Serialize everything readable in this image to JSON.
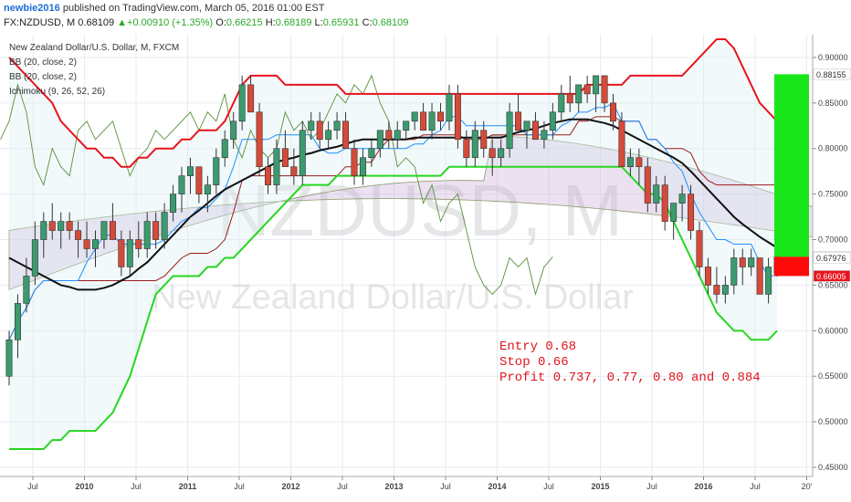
{
  "header": {
    "author": "newbie2016",
    "published_text": "published on TradingView.com, March 05, 2016 01:00 EST",
    "symbol": "FX:NZDUSD, M",
    "last": "0.68109",
    "change_arrow": "▲",
    "change": "+0.00910 (+1.35%)",
    "o_label": "O:",
    "o_value": "0.66215",
    "h_label": "H:",
    "h_value": "0.68189",
    "l_label": "L:",
    "l_value": "0.65931",
    "c_label": "C:",
    "c_value": "0.68109"
  },
  "legend": [
    "New Zealand Dollar/U.S. Dollar, M, FXCM",
    "BB (20, close, 2)",
    "BB (20, close, 2)",
    "Ichimoku (9, 26, 52, 26)"
  ],
  "watermark": {
    "symbol": "NZDUSD, M",
    "name": "New Zealand Dollar/U.S. Dollar"
  },
  "annotation": [
    "Entry 0.68",
    "Stop 0.66",
    "Profit 0.737, 0.77, 0.80 and 0.884"
  ],
  "price_tags": [
    {
      "text": "0.88155",
      "value": 0.88155,
      "bg": "#ffffff",
      "fg": "#333333"
    },
    {
      "text": "0.68109",
      "value": 0.68109,
      "bg": "#ffffff",
      "fg": "#333333"
    },
    {
      "text": "0.67976",
      "value": 0.67976,
      "bg": "#ffffff",
      "fg": "#333333"
    },
    {
      "text": "0.66005",
      "value": 0.66005,
      "bg": "#e8141c",
      "fg": "#ffffff"
    }
  ],
  "colors": {
    "bull": "#3c9b6e",
    "bear": "#d64a3a",
    "bb_upper": "#e8141c",
    "bb_lower": "#27d620",
    "sma": "#111111",
    "tenkan": "#1e90ff",
    "kijun": "#9b1b1b",
    "chikou": "#5a8f3a",
    "cloud": "#c8a8d8",
    "profit": "#19e61a",
    "loss": "#ff0a0a"
  },
  "chart_data": {
    "type": "candlestick",
    "title": "New Zealand Dollar/U.S. Dollar, M, FXCM",
    "ylim": [
      0.44,
      0.925
    ],
    "y_ticks": [
      "0.90000",
      "0.85000",
      "0.80000",
      "0.75000",
      "0.70000",
      "0.65000",
      "0.60000",
      "0.55000",
      "0.50000",
      "0.45000"
    ],
    "x_labels": [
      "Jul",
      "2010",
      "Jul",
      "2011",
      "Jul",
      "2012",
      "Jul",
      "2013",
      "Jul",
      "2014",
      "Jul",
      "2015",
      "Jul",
      "2016",
      "Jul",
      "20'"
    ],
    "candles": [
      [
        0.55,
        0.6,
        0.54,
        0.59
      ],
      [
        0.59,
        0.64,
        0.57,
        0.63
      ],
      [
        0.63,
        0.68,
        0.62,
        0.66
      ],
      [
        0.66,
        0.72,
        0.65,
        0.7
      ],
      [
        0.7,
        0.73,
        0.68,
        0.72
      ],
      [
        0.72,
        0.74,
        0.7,
        0.71
      ],
      [
        0.71,
        0.73,
        0.69,
        0.72
      ],
      [
        0.72,
        0.73,
        0.7,
        0.71
      ],
      [
        0.71,
        0.72,
        0.68,
        0.7
      ],
      [
        0.7,
        0.72,
        0.68,
        0.69
      ],
      [
        0.69,
        0.71,
        0.67,
        0.7
      ],
      [
        0.7,
        0.72,
        0.69,
        0.72
      ],
      [
        0.72,
        0.74,
        0.7,
        0.7
      ],
      [
        0.7,
        0.71,
        0.66,
        0.67
      ],
      [
        0.67,
        0.71,
        0.66,
        0.7
      ],
      [
        0.7,
        0.72,
        0.68,
        0.69
      ],
      [
        0.69,
        0.73,
        0.68,
        0.72
      ],
      [
        0.72,
        0.73,
        0.69,
        0.7
      ],
      [
        0.7,
        0.74,
        0.69,
        0.73
      ],
      [
        0.73,
        0.76,
        0.72,
        0.75
      ],
      [
        0.75,
        0.78,
        0.73,
        0.77
      ],
      [
        0.77,
        0.79,
        0.75,
        0.78
      ],
      [
        0.78,
        0.78,
        0.74,
        0.75
      ],
      [
        0.75,
        0.77,
        0.73,
        0.76
      ],
      [
        0.76,
        0.8,
        0.75,
        0.79
      ],
      [
        0.79,
        0.82,
        0.78,
        0.81
      ],
      [
        0.81,
        0.84,
        0.8,
        0.83
      ],
      [
        0.83,
        0.88,
        0.82,
        0.87
      ],
      [
        0.87,
        0.88,
        0.84,
        0.84
      ],
      [
        0.84,
        0.85,
        0.77,
        0.78
      ],
      [
        0.78,
        0.79,
        0.75,
        0.76
      ],
      [
        0.76,
        0.81,
        0.75,
        0.8
      ],
      [
        0.8,
        0.82,
        0.78,
        0.78
      ],
      [
        0.78,
        0.8,
        0.76,
        0.77
      ],
      [
        0.77,
        0.83,
        0.76,
        0.82
      ],
      [
        0.82,
        0.84,
        0.81,
        0.83
      ],
      [
        0.83,
        0.84,
        0.8,
        0.81
      ],
      [
        0.81,
        0.83,
        0.8,
        0.82
      ],
      [
        0.82,
        0.84,
        0.81,
        0.83
      ],
      [
        0.83,
        0.84,
        0.8,
        0.8
      ],
      [
        0.8,
        0.81,
        0.76,
        0.77
      ],
      [
        0.77,
        0.8,
        0.76,
        0.79
      ],
      [
        0.79,
        0.81,
        0.78,
        0.8
      ],
      [
        0.8,
        0.82,
        0.79,
        0.82
      ],
      [
        0.82,
        0.83,
        0.8,
        0.81
      ],
      [
        0.81,
        0.83,
        0.8,
        0.82
      ],
      [
        0.82,
        0.83,
        0.81,
        0.83
      ],
      [
        0.83,
        0.84,
        0.82,
        0.84
      ],
      [
        0.84,
        0.85,
        0.82,
        0.82
      ],
      [
        0.82,
        0.85,
        0.81,
        0.84
      ],
      [
        0.84,
        0.85,
        0.82,
        0.83
      ],
      [
        0.83,
        0.87,
        0.82,
        0.86
      ],
      [
        0.86,
        0.87,
        0.8,
        0.81
      ],
      [
        0.81,
        0.82,
        0.78,
        0.79
      ],
      [
        0.79,
        0.83,
        0.78,
        0.82
      ],
      [
        0.82,
        0.83,
        0.79,
        0.8
      ],
      [
        0.8,
        0.81,
        0.77,
        0.79
      ],
      [
        0.79,
        0.81,
        0.78,
        0.8
      ],
      [
        0.8,
        0.85,
        0.79,
        0.84
      ],
      [
        0.84,
        0.86,
        0.82,
        0.82
      ],
      [
        0.82,
        0.83,
        0.8,
        0.83
      ],
      [
        0.83,
        0.84,
        0.81,
        0.81
      ],
      [
        0.81,
        0.83,
        0.8,
        0.82
      ],
      [
        0.82,
        0.85,
        0.81,
        0.84
      ],
      [
        0.84,
        0.87,
        0.83,
        0.86
      ],
      [
        0.86,
        0.88,
        0.84,
        0.85
      ],
      [
        0.85,
        0.87,
        0.84,
        0.87
      ],
      [
        0.87,
        0.88,
        0.85,
        0.86
      ],
      [
        0.86,
        0.88,
        0.84,
        0.88
      ],
      [
        0.88,
        0.88,
        0.84,
        0.85
      ],
      [
        0.85,
        0.86,
        0.82,
        0.83
      ],
      [
        0.83,
        0.84,
        0.78,
        0.78
      ],
      [
        0.78,
        0.8,
        0.77,
        0.79
      ],
      [
        0.79,
        0.8,
        0.76,
        0.78
      ],
      [
        0.78,
        0.79,
        0.73,
        0.74
      ],
      [
        0.74,
        0.77,
        0.73,
        0.76
      ],
      [
        0.76,
        0.77,
        0.71,
        0.72
      ],
      [
        0.72,
        0.74,
        0.7,
        0.74
      ],
      [
        0.74,
        0.76,
        0.72,
        0.75
      ],
      [
        0.75,
        0.76,
        0.7,
        0.71
      ],
      [
        0.71,
        0.72,
        0.66,
        0.67
      ],
      [
        0.67,
        0.68,
        0.64,
        0.65
      ],
      [
        0.65,
        0.67,
        0.63,
        0.64
      ],
      [
        0.64,
        0.66,
        0.63,
        0.65
      ],
      [
        0.65,
        0.69,
        0.64,
        0.68
      ],
      [
        0.68,
        0.69,
        0.65,
        0.67
      ],
      [
        0.67,
        0.69,
        0.66,
        0.68
      ],
      [
        0.68,
        0.68,
        0.64,
        0.64
      ],
      [
        0.64,
        0.68,
        0.63,
        0.67
      ],
      [
        0.66215,
        0.68189,
        0.65931,
        0.68109
      ]
    ],
    "bb_upper": [
      0.9,
      0.89,
      0.88,
      0.87,
      0.86,
      0.85,
      0.83,
      0.82,
      0.81,
      0.8,
      0.8,
      0.79,
      0.79,
      0.78,
      0.78,
      0.79,
      0.79,
      0.8,
      0.8,
      0.8,
      0.81,
      0.81,
      0.82,
      0.82,
      0.82,
      0.83,
      0.85,
      0.87,
      0.88,
      0.88,
      0.88,
      0.88,
      0.87,
      0.87,
      0.87,
      0.87,
      0.87,
      0.87,
      0.87,
      0.86,
      0.86,
      0.86,
      0.86,
      0.86,
      0.86,
      0.86,
      0.86,
      0.86,
      0.86,
      0.86,
      0.86,
      0.86,
      0.86,
      0.86,
      0.86,
      0.86,
      0.86,
      0.86,
      0.86,
      0.86,
      0.86,
      0.86,
      0.86,
      0.86,
      0.86,
      0.86,
      0.86,
      0.87,
      0.87,
      0.87,
      0.87,
      0.87,
      0.88,
      0.88,
      0.88,
      0.88,
      0.88,
      0.88,
      0.88,
      0.89,
      0.9,
      0.91,
      0.92,
      0.92,
      0.91,
      0.89,
      0.87,
      0.85,
      0.84,
      0.83
    ],
    "bb_lower": [
      0.47,
      0.47,
      0.47,
      0.47,
      0.47,
      0.48,
      0.48,
      0.49,
      0.49,
      0.49,
      0.49,
      0.5,
      0.51,
      0.53,
      0.55,
      0.58,
      0.61,
      0.64,
      0.65,
      0.66,
      0.66,
      0.66,
      0.66,
      0.67,
      0.67,
      0.68,
      0.68,
      0.69,
      0.7,
      0.71,
      0.72,
      0.73,
      0.74,
      0.75,
      0.76,
      0.76,
      0.76,
      0.76,
      0.77,
      0.77,
      0.77,
      0.77,
      0.77,
      0.77,
      0.77,
      0.77,
      0.77,
      0.77,
      0.77,
      0.77,
      0.77,
      0.78,
      0.78,
      0.78,
      0.78,
      0.78,
      0.78,
      0.78,
      0.78,
      0.78,
      0.78,
      0.78,
      0.78,
      0.78,
      0.78,
      0.78,
      0.78,
      0.78,
      0.78,
      0.78,
      0.78,
      0.78,
      0.77,
      0.76,
      0.75,
      0.75,
      0.74,
      0.72,
      0.7,
      0.68,
      0.66,
      0.64,
      0.62,
      0.61,
      0.6,
      0.6,
      0.59,
      0.59,
      0.59,
      0.6
    ],
    "sma": [
      0.68,
      0.675,
      0.67,
      0.665,
      0.66,
      0.655,
      0.65,
      0.648,
      0.645,
      0.645,
      0.645,
      0.647,
      0.65,
      0.655,
      0.66,
      0.668,
      0.675,
      0.685,
      0.695,
      0.705,
      0.715,
      0.725,
      0.732,
      0.74,
      0.748,
      0.755,
      0.76,
      0.765,
      0.77,
      0.775,
      0.78,
      0.785,
      0.788,
      0.79,
      0.793,
      0.795,
      0.798,
      0.8,
      0.802,
      0.805,
      0.808,
      0.81,
      0.81,
      0.81,
      0.81,
      0.81,
      0.81,
      0.812,
      0.812,
      0.812,
      0.812,
      0.812,
      0.812,
      0.812,
      0.812,
      0.812,
      0.812,
      0.812,
      0.815,
      0.818,
      0.82,
      0.822,
      0.825,
      0.828,
      0.83,
      0.832,
      0.832,
      0.832,
      0.83,
      0.828,
      0.825,
      0.82,
      0.815,
      0.81,
      0.805,
      0.8,
      0.795,
      0.79,
      0.784,
      0.775,
      0.765,
      0.755,
      0.745,
      0.735,
      0.725,
      0.717,
      0.71,
      0.703,
      0.697,
      0.691
    ]
  }
}
